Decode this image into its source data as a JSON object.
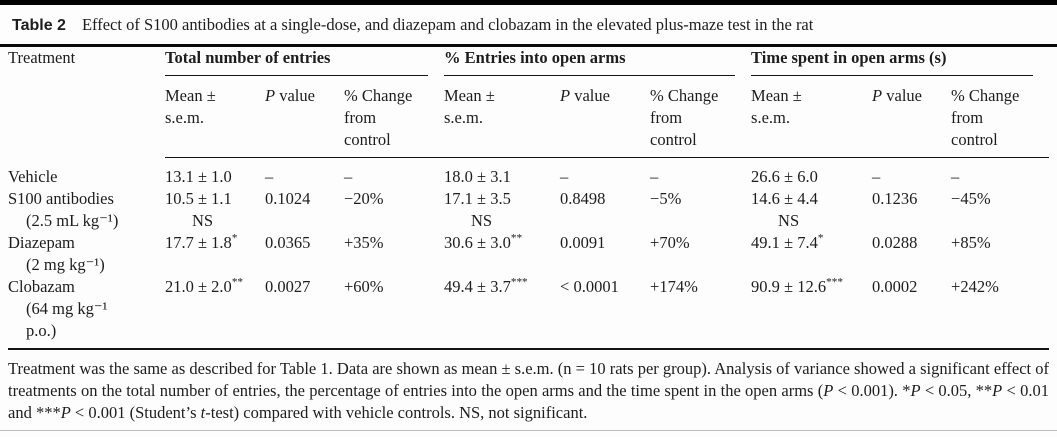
{
  "caption": {
    "label": "Table 2",
    "text": "Effect of S100 antibodies at a single-dose, and diazepam and clobazam in the elevated plus-maze test in the rat"
  },
  "header": {
    "treatment_label": "Treatment",
    "groups": [
      {
        "title": "Total number of entries"
      },
      {
        "title": "% Entries into open arms"
      },
      {
        "title": "Time spent in open arms (s)"
      }
    ],
    "sub": {
      "mean1": "Mean ±",
      "mean2": "s.e.m.",
      "p_sym": "P",
      "p_word": " value",
      "chg1": "% Change",
      "chg2": "from",
      "chg3": "control"
    }
  },
  "rows": [
    {
      "treatment": [
        "Vehicle"
      ],
      "groups": [
        {
          "mean": "13.1 ± 1.0",
          "stars": "",
          "ns": "",
          "p": "–",
          "change": "–"
        },
        {
          "mean": "18.0 ± 3.1",
          "stars": "",
          "ns": "",
          "p": "–",
          "change": "–"
        },
        {
          "mean": "26.6 ± 6.0",
          "stars": "",
          "ns": "",
          "p": "–",
          "change": "–"
        }
      ]
    },
    {
      "treatment": [
        "S100 antibodies",
        "(2.5 mL kg⁻¹)"
      ],
      "groups": [
        {
          "mean": "10.5 ± 1.1",
          "stars": "",
          "ns": "NS",
          "p": "0.1024",
          "change": "−20%"
        },
        {
          "mean": "17.1 ± 3.5",
          "stars": "",
          "ns": "NS",
          "p": "0.8498",
          "change": "−5%"
        },
        {
          "mean": "14.6 ± 4.4",
          "stars": "",
          "ns": "NS",
          "p": "0.1236",
          "change": "−45%"
        }
      ]
    },
    {
      "treatment": [
        "Diazepam",
        "(2 mg kg⁻¹)"
      ],
      "groups": [
        {
          "mean": "17.7 ± 1.8",
          "stars": "*",
          "ns": "",
          "p": "0.0365",
          "change": "+35%"
        },
        {
          "mean": "30.6 ± 3.0",
          "stars": "**",
          "ns": "",
          "p": "0.0091",
          "change": "+70%"
        },
        {
          "mean": "49.1 ± 7.4",
          "stars": "*",
          "ns": "",
          "p": "0.0288",
          "change": "+85%"
        }
      ]
    },
    {
      "treatment": [
        "Clobazam",
        "(64 mg kg⁻¹",
        "p.o.)"
      ],
      "groups": [
        {
          "mean": "21.0 ± 2.0",
          "stars": "**",
          "ns": "",
          "p": "0.0027",
          "change": "+60%"
        },
        {
          "mean": "49.4 ± 3.7",
          "stars": "***",
          "ns": "",
          "p": "< 0.0001",
          "change": "+174%"
        },
        {
          "mean": "90.9 ± 12.6",
          "stars": "***",
          "ns": "",
          "p": "0.0002",
          "change": "+242%"
        }
      ]
    }
  ],
  "footnote": {
    "segments": [
      {
        "t": "Treatment was the same as described for Table 1. Data are shown as mean ± s.e.m. (n = 10 rats per group). Analysis of variance showed a significant effect of treatments on the total number of entries, the percentage of entries into the open arms and the time spent in the open arms ("
      },
      {
        "t": "P",
        "i": true
      },
      {
        "t": " < 0.001). *"
      },
      {
        "t": "P",
        "i": true
      },
      {
        "t": " < 0.05, **"
      },
      {
        "t": "P",
        "i": true
      },
      {
        "t": " < 0.01 and ***"
      },
      {
        "t": "P",
        "i": true
      },
      {
        "t": " < 0.001 (Student’s "
      },
      {
        "t": "t",
        "i": true
      },
      {
        "t": "-test) compared with vehicle controls. NS, not significant."
      }
    ]
  },
  "colors": {
    "rule": "#141414",
    "light_rule": "#bcbcbc",
    "text": "#1d1d1f",
    "background": "#fdfdfd"
  }
}
